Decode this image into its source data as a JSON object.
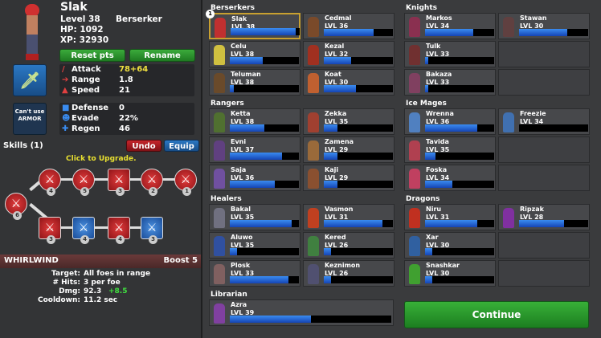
{
  "hero": {
    "name": "Slak",
    "level": "Level 38",
    "class": "Berserker",
    "hp": "HP: 1092",
    "xp": "XP: 32930",
    "reset": "Reset pts",
    "rename": "Rename",
    "armor": "Can't use ARMOR",
    "stats1": [
      {
        "icon": "sword-icon",
        "label": "Attack",
        "value": "78+64",
        "color": "#f0e040"
      },
      {
        "icon": "range-icon",
        "label": "Range",
        "value": "1.8"
      },
      {
        "icon": "speed-icon",
        "label": "Speed",
        "value": "21"
      }
    ],
    "stats2": [
      {
        "icon": "shield-icon",
        "label": "Defense",
        "value": "0"
      },
      {
        "icon": "ghost-icon",
        "label": "Evade",
        "value": "22%"
      },
      {
        "icon": "cross-icon",
        "label": "Regen",
        "value": "46"
      }
    ]
  },
  "skills": {
    "title": "Skills (1)",
    "undo": "Undo",
    "equip": "Equip",
    "hint": "Click to Upgrade.",
    "top": [
      "4",
      "5",
      "3",
      "2",
      "1"
    ],
    "root": "6",
    "bottom": [
      "3",
      "4",
      "4",
      "3"
    ],
    "selected": "WHIRLWIND",
    "boost": "Boost 5",
    "details": [
      {
        "k": "Target:",
        "v": "All foes in range"
      },
      {
        "k": "# Hits:",
        "v": "3 per foe"
      },
      {
        "k": "Dmg:",
        "v": "92.3",
        "extra": "+8.5"
      },
      {
        "k": "Cooldown:",
        "v": "11.2 sec"
      }
    ]
  },
  "roster": [
    {
      "title": "Berserkers",
      "col": 0,
      "row": 0,
      "members": [
        {
          "name": "Slak",
          "lvl": "LVL 38",
          "xp": 0.94,
          "c": "#c03030",
          "sel": true
        },
        {
          "name": "Cedmal",
          "lvl": "LVL 36",
          "xp": 0.72,
          "c": "#7a4a2a"
        },
        {
          "name": "Celu",
          "lvl": "LVL 38",
          "xp": 0.48,
          "c": "#d0c040"
        },
        {
          "name": "Kezal",
          "lvl": "LVL 32",
          "xp": 0.4,
          "c": "#a03020"
        },
        {
          "name": "Teluman",
          "lvl": "LVL 38",
          "xp": 0.06,
          "c": "#6a4a2a"
        },
        {
          "name": "Koat",
          "lvl": "LVL 30",
          "xp": 0.46,
          "c": "#c06030"
        }
      ]
    },
    {
      "title": "Knights",
      "col": 1,
      "row": 0,
      "members": [
        {
          "name": "Markos",
          "lvl": "LVL 34",
          "xp": 0.7,
          "c": "#8a3050"
        },
        {
          "name": "Stawan",
          "lvl": "LVL 30",
          "xp": 0.7,
          "c": "#604040"
        },
        {
          "name": "Tulk",
          "lvl": "LVL 33",
          "xp": 0.05,
          "c": "#703030"
        },
        null,
        {
          "name": "Bakaza",
          "lvl": "LVL 33",
          "xp": 0.05,
          "c": "#804060"
        },
        null
      ]
    },
    {
      "title": "Rangers",
      "col": 0,
      "row": 1,
      "members": [
        {
          "name": "Ketta",
          "lvl": "LVL 38",
          "xp": 0.5,
          "c": "#507030"
        },
        {
          "name": "Zekka",
          "lvl": "LVL 35",
          "xp": 0.2,
          "c": "#a04030"
        },
        {
          "name": "Evni",
          "lvl": "LVL 37",
          "xp": 0.75,
          "c": "#604080"
        },
        {
          "name": "Zamena",
          "lvl": "LVL 29",
          "xp": 0.2,
          "c": "#9a6a3a"
        },
        {
          "name": "Saja",
          "lvl": "LVL 36",
          "xp": 0.65,
          "c": "#7050a0"
        },
        {
          "name": "Kaji",
          "lvl": "LVL 29",
          "xp": 0.2,
          "c": "#8a5030"
        }
      ]
    },
    {
      "title": "Ice Mages",
      "col": 1,
      "row": 1,
      "members": [
        {
          "name": "Wrenna",
          "lvl": "LVL 36",
          "xp": 0.75,
          "c": "#5080c0"
        },
        {
          "name": "Freezie",
          "lvl": "LVL 34",
          "xp": 0.0,
          "c": "#4070b0"
        },
        {
          "name": "Tavida",
          "lvl": "LVL 35",
          "xp": 0.15,
          "c": "#b04050"
        },
        null,
        {
          "name": "Foska",
          "lvl": "LVL 34",
          "xp": 0.4,
          "c": "#c04060"
        },
        null
      ]
    },
    {
      "title": "Healers",
      "col": 0,
      "row": 2,
      "members": [
        {
          "name": "Bakal",
          "lvl": "LVL 35",
          "xp": 0.9,
          "c": "#707080"
        },
        {
          "name": "Vasmon",
          "lvl": "LVL 31",
          "xp": 0.85,
          "c": "#c04020"
        },
        {
          "name": "Aluwo",
          "lvl": "LVL 35",
          "xp": 0.1,
          "c": "#3050a0"
        },
        {
          "name": "Kered",
          "lvl": "LVL 26",
          "xp": 0.1,
          "c": "#408040"
        },
        {
          "name": "Plosk",
          "lvl": "LVL 33",
          "xp": 0.85,
          "c": "#806060"
        },
        {
          "name": "Keznimon",
          "lvl": "LVL 26",
          "xp": 0.1,
          "c": "#505070"
        }
      ]
    },
    {
      "title": "Dragons",
      "col": 1,
      "row": 2,
      "members": [
        {
          "name": "Niru",
          "lvl": "LVL 31",
          "xp": 0.75,
          "c": "#c03020"
        },
        {
          "name": "Ripzak",
          "lvl": "LVL 28",
          "xp": 0.65,
          "c": "#8030a0"
        },
        {
          "name": "Xar",
          "lvl": "LVL 30",
          "xp": 0.1,
          "c": "#3060a0"
        },
        null,
        {
          "name": "Snashkar",
          "lvl": "LVL 30",
          "xp": 0.1,
          "c": "#40a030"
        },
        null
      ]
    },
    {
      "title": "Librarian",
      "col": 0,
      "row": 3,
      "members": [
        {
          "name": "Azra",
          "lvl": "LVL 39",
          "xp": 0.5,
          "c": "#8040a0",
          "wide": true
        }
      ]
    }
  ],
  "continue": "Continue",
  "colors": {
    "xp_bar": "#2a6ae0",
    "continue": "#2a9a2a",
    "select": "#c8a030"
  }
}
